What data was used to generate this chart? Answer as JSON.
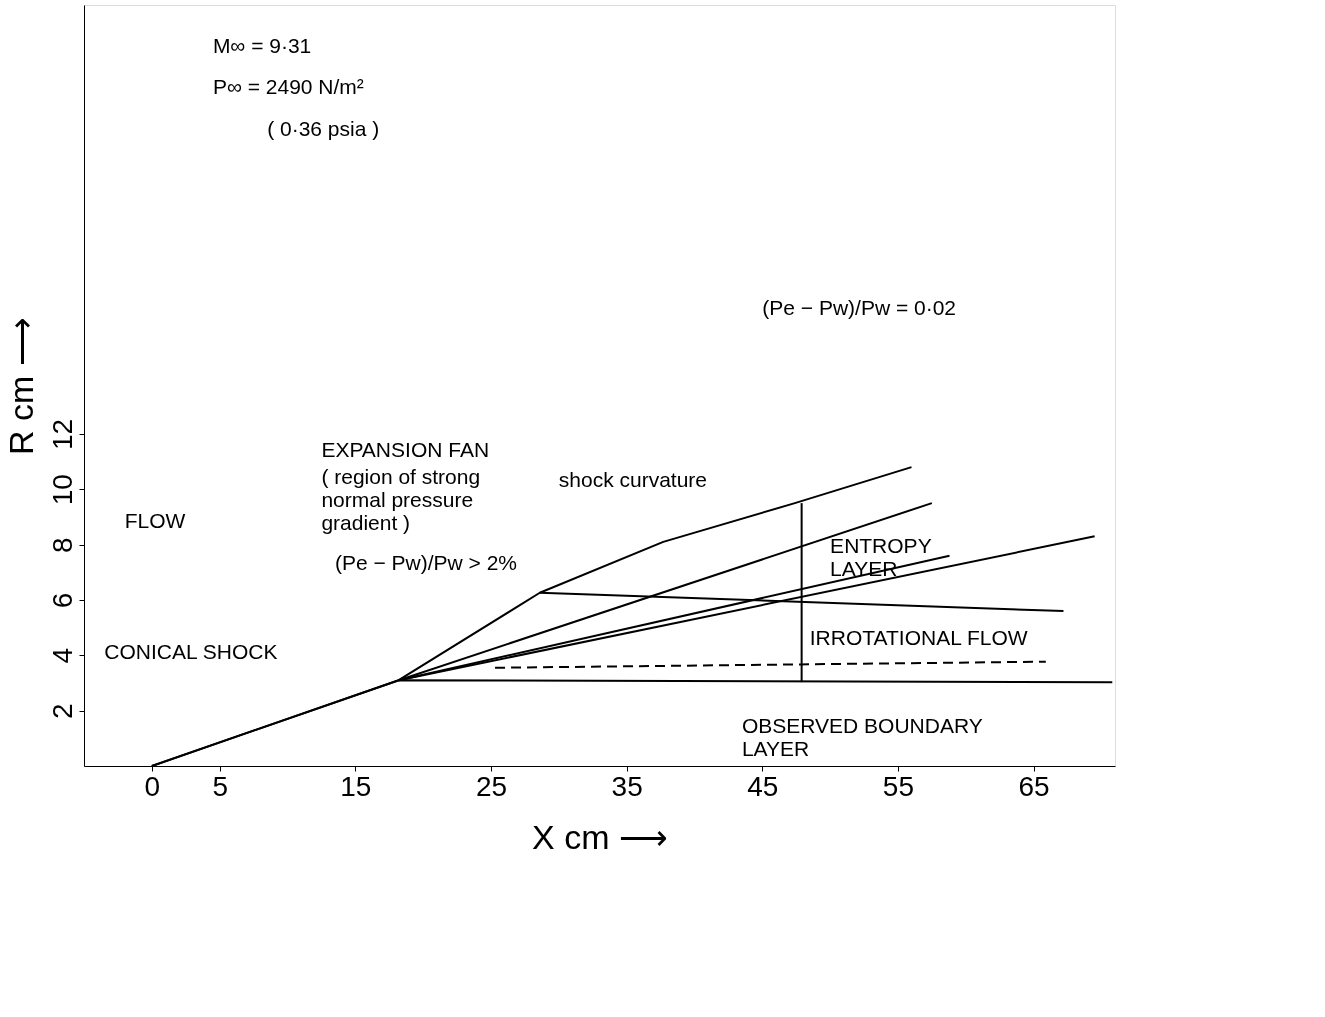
{
  "chart_data": {
    "type": "line",
    "xlabel": "X cm ⟶",
    "ylabel": "R cm ⟶",
    "xlim": [
      -5,
      71
    ],
    "ylim": [
      0,
      27.5
    ],
    "xticks": [
      0,
      5,
      15,
      25,
      35,
      45,
      55,
      65
    ],
    "yticks": [
      2,
      4,
      6,
      8,
      10,
      12
    ],
    "grid": false,
    "marker": "none",
    "series": [
      {
        "color": "#000000",
        "x": [
          0,
          18.2,
          28.6,
          37.7,
          47.4,
          56
        ],
        "values": [
          0,
          3.1,
          6.26,
          8.1,
          9.5,
          10.8
        ]
      },
      {
        "color": "#000000",
        "x": [
          0,
          18.2,
          70.8
        ],
        "values": [
          0,
          3.1,
          3.03
        ]
      },
      {
        "color": "#000000",
        "x": [
          18.2,
          57.5
        ],
        "values": [
          3.1,
          9.5
        ]
      },
      {
        "color": "#000000",
        "x": [
          18.2,
          58.8
        ],
        "values": [
          3.1,
          7.6
        ]
      },
      {
        "color": "#000000",
        "x": [
          18.2,
          69.5
        ],
        "values": [
          3.1,
          8.3
        ]
      },
      {
        "color": "#000000",
        "x": [
          28.6,
          67.2
        ],
        "values": [
          6.26,
          5.6
        ]
      },
      {
        "color": "#000000",
        "x": [
          47.9,
          47.9
        ],
        "values": [
          3.03,
          9.5
        ]
      },
      {
        "color": "#000000",
        "line_style": "dashed",
        "x": [
          25.3,
          65.9
        ],
        "values": [
          3.55,
          3.77
        ]
      }
    ],
    "annotations": [
      "M∞ = 9·31",
      "P∞ = 2490 N/m²",
      "( 0·36 psia )",
      "FLOW",
      "EXPANSION FAN",
      "( region of strong\nnormal pressure\ngradient )",
      "(Pe − Pw)/Pw > 2%",
      "shock curvature",
      "ENTROPY\nLAYER",
      "IRROTATIONAL FLOW",
      "CONICAL SHOCK",
      "OBSERVED BOUNDARY\nLAYER",
      "(Pe − Pw)/Pw = 0·02"
    ]
  }
}
